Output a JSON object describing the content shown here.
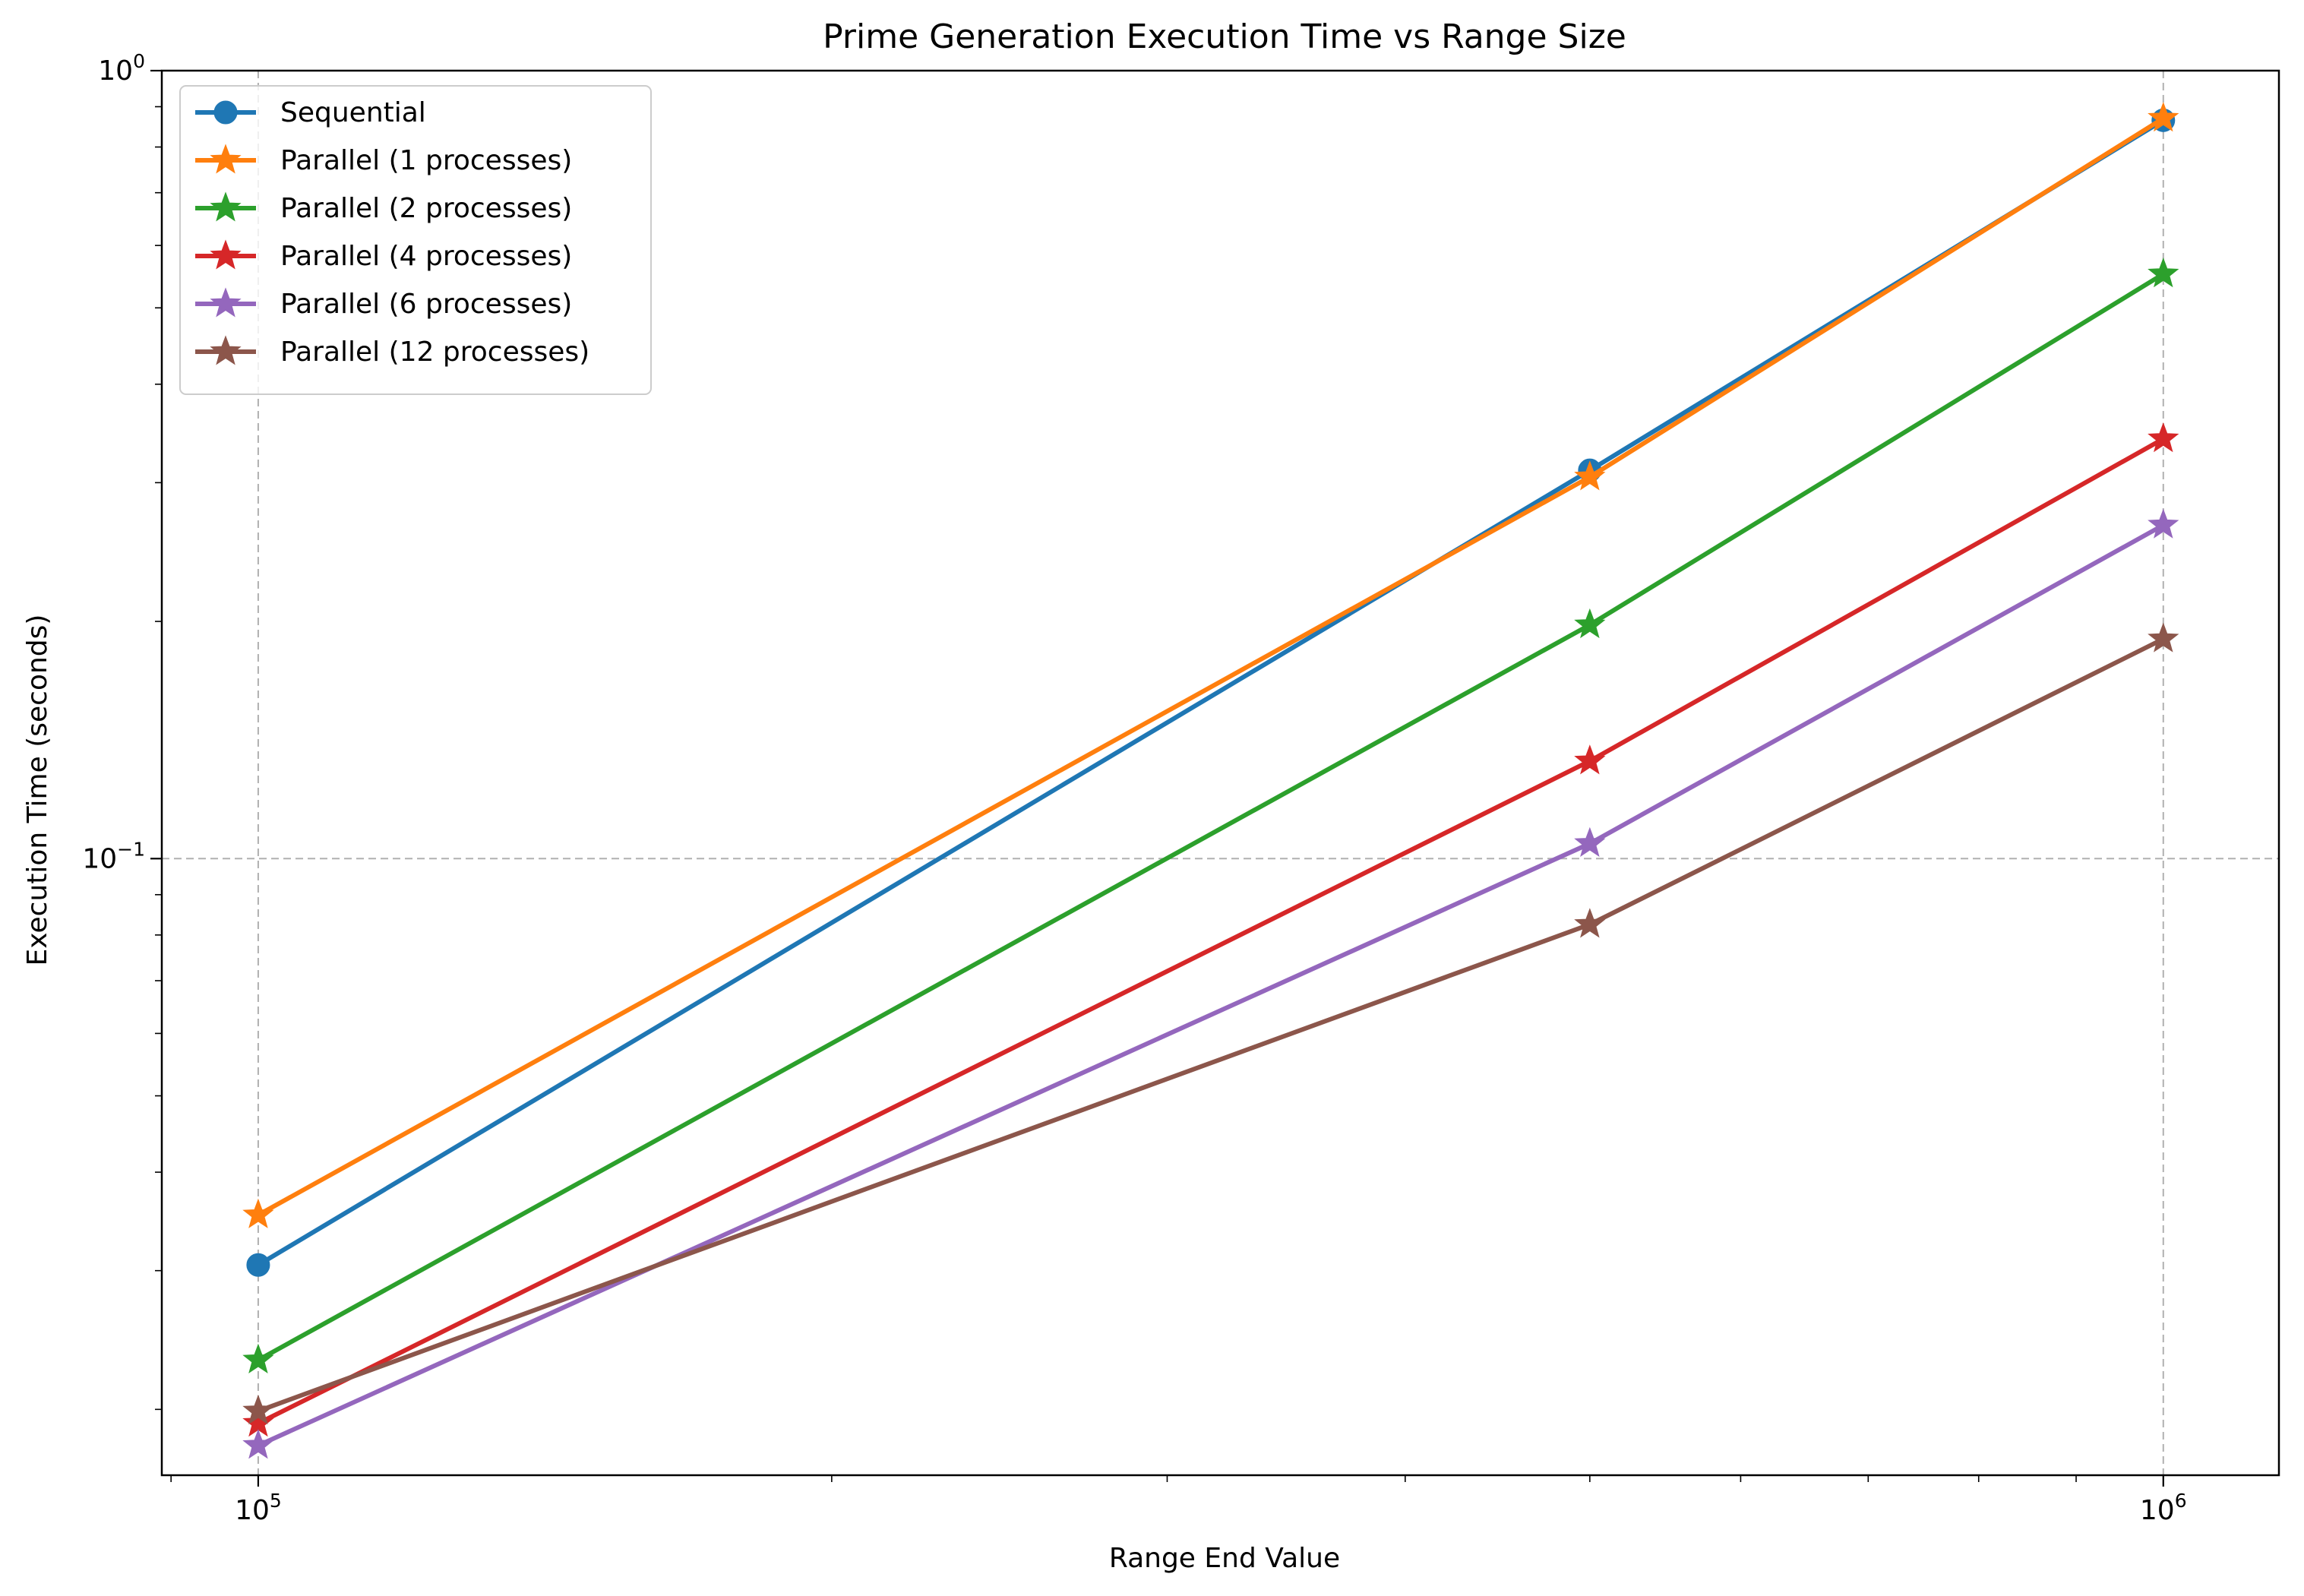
{
  "chart_data": {
    "type": "line",
    "title": "Prime Generation Execution Time vs Range Size",
    "xlabel": "Range End Value",
    "ylabel": "Execution Time (seconds)",
    "x_scale": "log",
    "y_scale": "log",
    "xlim": [
      89000,
      1150000
    ],
    "ylim": [
      0.0165,
      1.0
    ],
    "grid": true,
    "legend_position": "top-left",
    "x_ticks": [
      {
        "value": 100000,
        "base": "10",
        "exp": "5"
      },
      {
        "value": 1000000,
        "base": "10",
        "exp": "6"
      }
    ],
    "y_ticks": [
      {
        "value": 0.1,
        "base": "10",
        "exp": "−1"
      },
      {
        "value": 1.0,
        "base": "10",
        "exp": "0"
      }
    ],
    "x": [
      100000,
      500000,
      1000000
    ],
    "series": [
      {
        "name": "Sequential",
        "color": "#1f77b4",
        "marker": "circle",
        "values": [
          0.0305,
          0.311,
          0.865
        ]
      },
      {
        "name": "Parallel (1 processes)",
        "color": "#ff7f0e",
        "marker": "star",
        "values": [
          0.0353,
          0.305,
          0.87
        ]
      },
      {
        "name": "Parallel (2 processes)",
        "color": "#2ca02c",
        "marker": "star",
        "values": [
          0.0231,
          0.198,
          0.552
        ]
      },
      {
        "name": "Parallel (4 processes)",
        "color": "#d62728",
        "marker": "star",
        "values": [
          0.0192,
          0.133,
          0.341
        ]
      },
      {
        "name": "Parallel (6 processes)",
        "color": "#9467bd",
        "marker": "star",
        "values": [
          0.018,
          0.1045,
          0.265
        ]
      },
      {
        "name": "Parallel (12 processes)",
        "color": "#8c564b",
        "marker": "star",
        "values": [
          0.0199,
          0.0825,
          0.19
        ]
      }
    ]
  }
}
